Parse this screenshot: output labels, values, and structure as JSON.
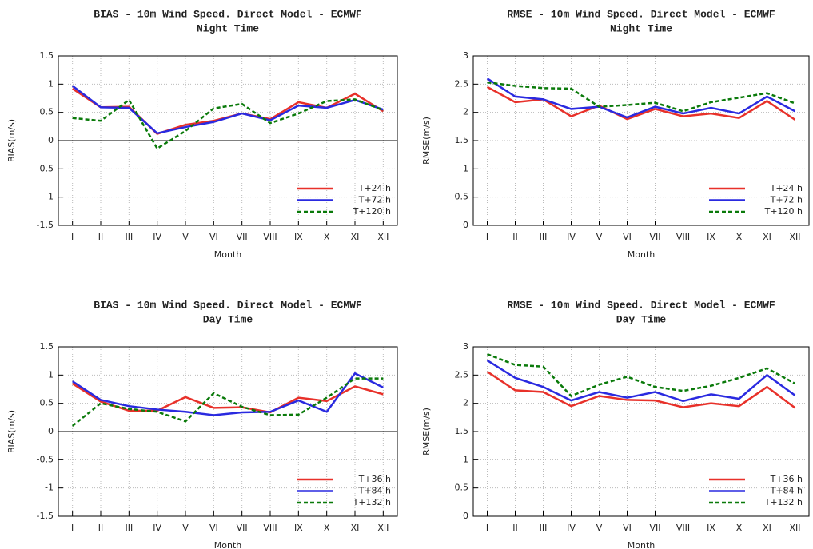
{
  "chart_data": [
    {
      "type": "line",
      "title": "BIAS - 10m Wind Speed. Direct Model - ECMWF",
      "subtitle": "Night Time",
      "x_label": "Month",
      "y_label": "BIAS(m/s)",
      "categories": [
        "I",
        "II",
        "III",
        "IV",
        "V",
        "VI",
        "VII",
        "VIII",
        "IX",
        "X",
        "XI",
        "XII"
      ],
      "ylim": [
        -1.5,
        1.5
      ],
      "yticks": [
        -1.5,
        -1,
        -0.5,
        0,
        0.5,
        1,
        1.5
      ],
      "grid": true,
      "zero_line": true,
      "legend": "lower right",
      "series": [
        {
          "name": "T+24 h",
          "color": "#e8312a",
          "line_style": "solid",
          "values": [
            0.92,
            0.59,
            0.6,
            0.12,
            0.28,
            0.35,
            0.48,
            0.38,
            0.68,
            0.58,
            0.83,
            0.52
          ]
        },
        {
          "name": "T+72 h",
          "color": "#2a2ae0",
          "line_style": "solid",
          "values": [
            0.97,
            0.59,
            0.58,
            0.13,
            0.24,
            0.33,
            0.48,
            0.36,
            0.62,
            0.58,
            0.72,
            0.55
          ]
        },
        {
          "name": "T+120 h",
          "color": "#0a7a0a",
          "line_style": "dashed",
          "values": [
            0.4,
            0.35,
            0.72,
            -0.14,
            0.17,
            0.57,
            0.65,
            0.31,
            0.48,
            0.7,
            0.73,
            0.54
          ]
        }
      ]
    },
    {
      "type": "line",
      "title": "RMSE - 10m Wind Speed. Direct Model - ECMWF",
      "subtitle": "Night Time",
      "x_label": "Month",
      "y_label": "RMSE(m/s)",
      "categories": [
        "I",
        "II",
        "III",
        "IV",
        "V",
        "VI",
        "VII",
        "VIII",
        "IX",
        "X",
        "XI",
        "XII"
      ],
      "ylim": [
        0,
        3
      ],
      "yticks": [
        0,
        0.5,
        1,
        1.5,
        2,
        2.5,
        3
      ],
      "grid": true,
      "zero_line": false,
      "legend": "lower right",
      "series": [
        {
          "name": "T+24 h",
          "color": "#e8312a",
          "line_style": "solid",
          "values": [
            2.45,
            2.18,
            2.23,
            1.93,
            2.12,
            1.88,
            2.06,
            1.93,
            1.98,
            1.9,
            2.2,
            1.87
          ]
        },
        {
          "name": "T+72 h",
          "color": "#2a2ae0",
          "line_style": "solid",
          "values": [
            2.6,
            2.28,
            2.23,
            2.06,
            2.1,
            1.91,
            2.1,
            1.98,
            2.08,
            1.98,
            2.28,
            2.02
          ]
        },
        {
          "name": "T+120 h",
          "color": "#0a7a0a",
          "line_style": "dashed",
          "values": [
            2.53,
            2.47,
            2.43,
            2.42,
            2.1,
            2.13,
            2.17,
            2.02,
            2.18,
            2.26,
            2.34,
            2.16
          ]
        }
      ]
    },
    {
      "type": "line",
      "title": "BIAS - 10m Wind Speed. Direct Model - ECMWF",
      "subtitle": "Day Time",
      "x_label": "Month",
      "y_label": "BIAS(m/s)",
      "categories": [
        "I",
        "II",
        "III",
        "IV",
        "V",
        "VI",
        "VII",
        "VIII",
        "IX",
        "X",
        "XI",
        "XII"
      ],
      "ylim": [
        -1.5,
        1.5
      ],
      "yticks": [
        -1.5,
        -1,
        -0.5,
        0,
        0.5,
        1,
        1.5
      ],
      "grid": true,
      "zero_line": true,
      "legend": "lower right",
      "series": [
        {
          "name": "T+36 h",
          "color": "#e8312a",
          "line_style": "solid",
          "values": [
            0.85,
            0.53,
            0.37,
            0.37,
            0.61,
            0.42,
            0.43,
            0.34,
            0.6,
            0.54,
            0.8,
            0.66
          ]
        },
        {
          "name": "T+84 h",
          "color": "#2a2ae0",
          "line_style": "solid",
          "values": [
            0.89,
            0.56,
            0.45,
            0.39,
            0.35,
            0.29,
            0.34,
            0.35,
            0.55,
            0.35,
            1.03,
            0.78
          ]
        },
        {
          "name": "T+132 h",
          "color": "#0a7a0a",
          "line_style": "dashed",
          "values": [
            0.1,
            0.5,
            0.4,
            0.35,
            0.18,
            0.68,
            0.44,
            0.29,
            0.3,
            0.6,
            0.94,
            0.94
          ]
        }
      ]
    },
    {
      "type": "line",
      "title": "RMSE - 10m Wind Speed. Direct Model - ECMWF",
      "subtitle": "Day Time",
      "x_label": "Month",
      "y_label": "RMSE(m/s)",
      "categories": [
        "I",
        "II",
        "III",
        "IV",
        "V",
        "VI",
        "VII",
        "VIII",
        "IX",
        "X",
        "XI",
        "XII"
      ],
      "ylim": [
        0,
        3
      ],
      "yticks": [
        0,
        0.5,
        1,
        1.5,
        2,
        2.5,
        3
      ],
      "grid": true,
      "zero_line": false,
      "legend": "lower right",
      "series": [
        {
          "name": "T+36 h",
          "color": "#e8312a",
          "line_style": "solid",
          "values": [
            2.56,
            2.23,
            2.2,
            1.95,
            2.13,
            2.06,
            2.05,
            1.93,
            2.0,
            1.95,
            2.29,
            1.92
          ]
        },
        {
          "name": "T+84 h",
          "color": "#2a2ae0",
          "line_style": "solid",
          "values": [
            2.76,
            2.45,
            2.29,
            2.05,
            2.2,
            2.1,
            2.2,
            2.04,
            2.16,
            2.08,
            2.5,
            2.14
          ]
        },
        {
          "name": "T+132 h",
          "color": "#0a7a0a",
          "line_style": "dashed",
          "values": [
            2.87,
            2.68,
            2.65,
            2.13,
            2.33,
            2.47,
            2.29,
            2.22,
            2.31,
            2.45,
            2.62,
            2.35
          ]
        }
      ]
    }
  ]
}
